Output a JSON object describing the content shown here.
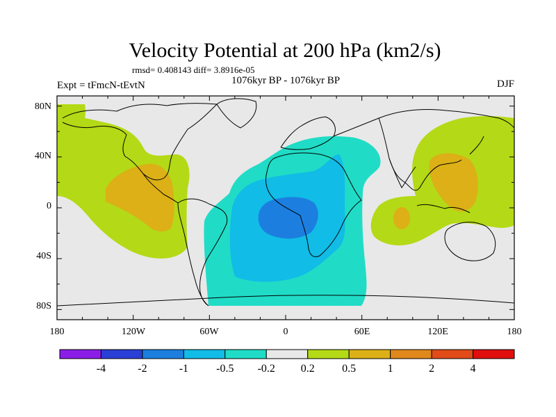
{
  "title": "Velocity Potential at 200 hPa (km2/s)",
  "stats": "rmsd= 0.408143 diff= 3.8916e-05",
  "period": "1076kyr BP - 1076kyr BP",
  "experiment": "Expt = tFmcN-tEvtN",
  "season": "DJF",
  "map": {
    "lat_labels": [
      "80N",
      "40N",
      "0",
      "40S",
      "80S"
    ],
    "lon_labels": [
      "180",
      "120W",
      "60W",
      "0",
      "60E",
      "120E",
      "180"
    ]
  },
  "colorbar": {
    "colors": [
      "#8a1ee6",
      "#2a3fd6",
      "#1c7fe0",
      "#11bce6",
      "#20dcc6",
      "#e8e8e8",
      "#b4d916",
      "#dcb016",
      "#e0881c",
      "#e04b18",
      "#e00e0e"
    ],
    "labels": [
      "-4",
      "-2",
      "-1",
      "-0.5",
      "-0.2",
      "0.2",
      "0.5",
      "1",
      "2",
      "4"
    ]
  },
  "palette": {
    "neutral": "#e8e8e8",
    "pos_weak": "#b4d916",
    "pos_mid": "#dcb016",
    "neg_weak": "#20dcc6",
    "neg_mid": "#11bce6",
    "neg_strong": "#1c7fe0"
  }
}
